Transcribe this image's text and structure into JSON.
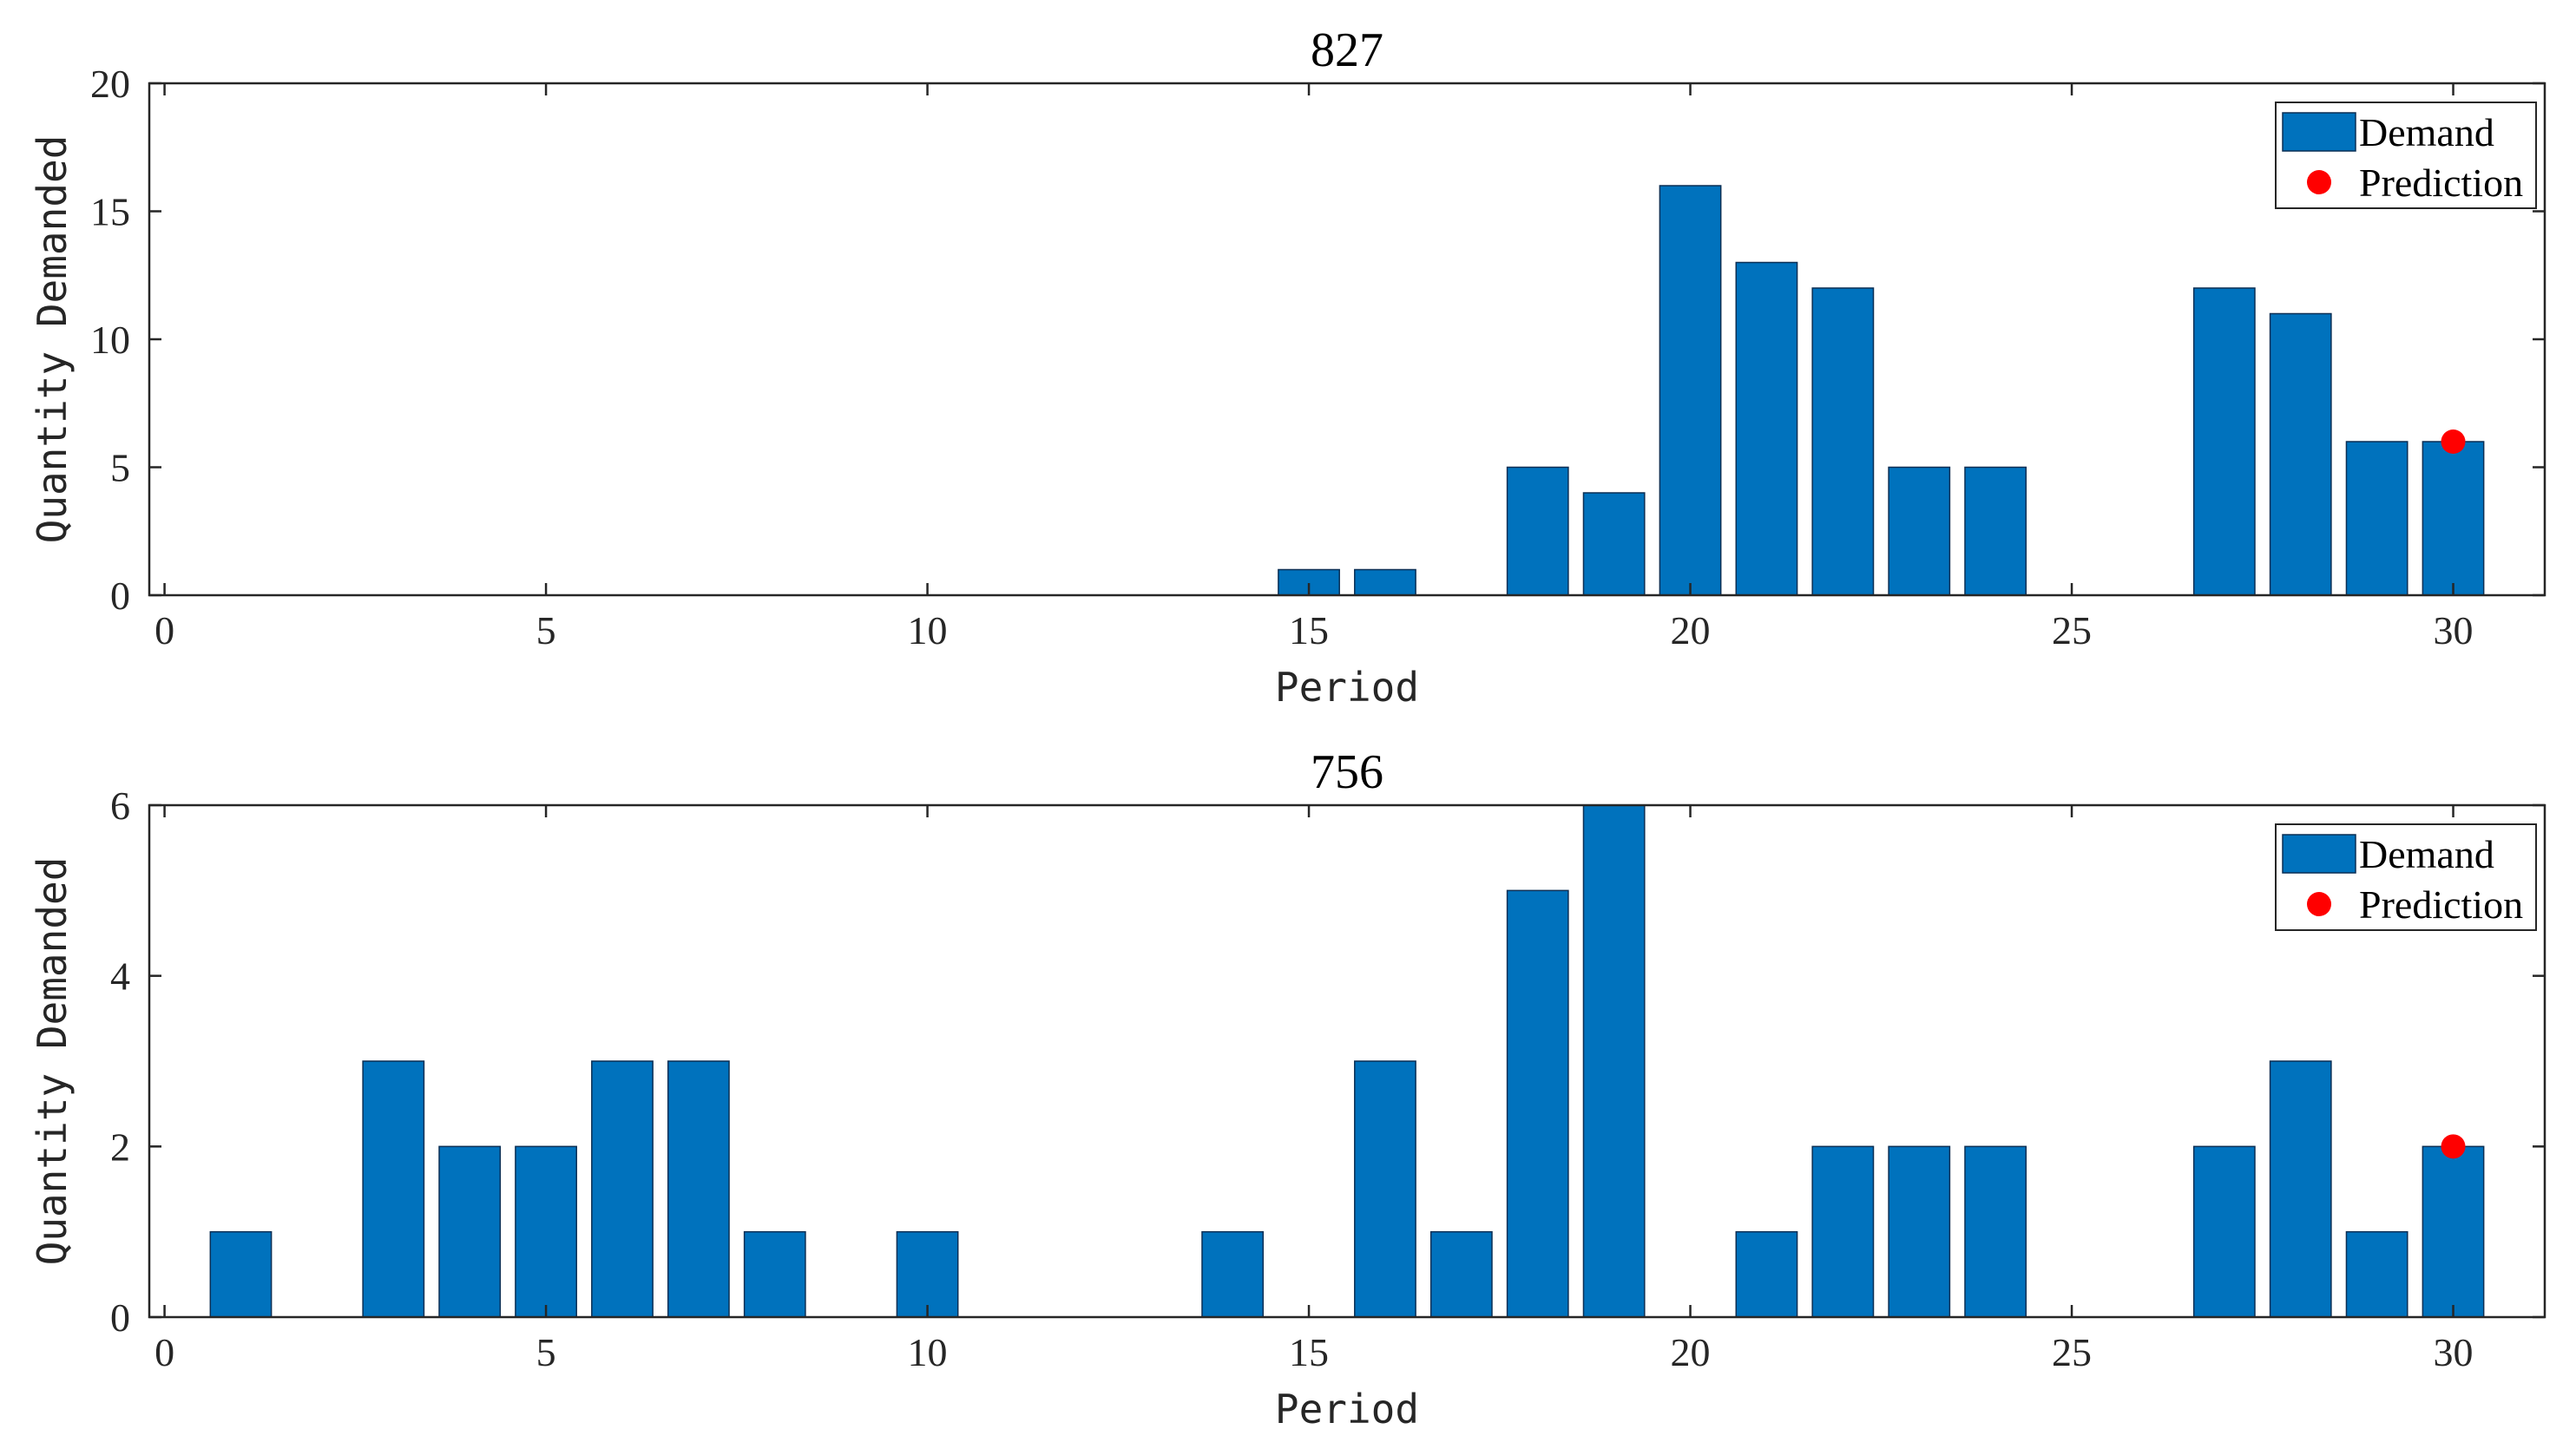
{
  "colors": {
    "bar_fill": "#0072BD",
    "bar_edge": "#0a2f55",
    "prediction": "#FF0000",
    "axis": "#262626"
  },
  "chart_data": [
    {
      "type": "bar",
      "title": "827",
      "xlabel": "Period",
      "ylabel": "Quantity Demanded",
      "xlim": [
        -0.2,
        31.2
      ],
      "ylim": [
        0,
        20
      ],
      "xticks": [
        0,
        5,
        10,
        15,
        20,
        25,
        30
      ],
      "yticks": [
        0,
        5,
        10,
        15,
        20
      ],
      "x": [
        1,
        2,
        3,
        4,
        5,
        6,
        7,
        8,
        9,
        10,
        11,
        12,
        13,
        14,
        15,
        16,
        17,
        18,
        19,
        20,
        21,
        22,
        23,
        24,
        25,
        26,
        27,
        28,
        29,
        30
      ],
      "series": [
        {
          "name": "Demand",
          "values": [
            0,
            0,
            0,
            0,
            0,
            0,
            0,
            0,
            0,
            0,
            0,
            0,
            0,
            0,
            1,
            1,
            0,
            5,
            4,
            16,
            13,
            12,
            5,
            5,
            0,
            0,
            12,
            11,
            6,
            6
          ]
        }
      ],
      "prediction": {
        "name": "Prediction",
        "x": 30,
        "y": 6
      },
      "legend": {
        "position": "top-right",
        "entries": [
          "Demand",
          "Prediction"
        ]
      }
    },
    {
      "type": "bar",
      "title": "756",
      "xlabel": "Period",
      "ylabel": "Quantity Demanded",
      "xlim": [
        -0.2,
        31.2
      ],
      "ylim": [
        0,
        6
      ],
      "xticks": [
        0,
        5,
        10,
        15,
        20,
        25,
        30
      ],
      "yticks": [
        0,
        2,
        4,
        6
      ],
      "x": [
        1,
        2,
        3,
        4,
        5,
        6,
        7,
        8,
        9,
        10,
        11,
        12,
        13,
        14,
        15,
        16,
        17,
        18,
        19,
        20,
        21,
        22,
        23,
        24,
        25,
        26,
        27,
        28,
        29,
        30
      ],
      "series": [
        {
          "name": "Demand",
          "values": [
            1,
            0,
            3,
            2,
            2,
            3,
            3,
            1,
            0,
            1,
            0,
            0,
            0,
            1,
            0,
            3,
            1,
            5,
            6,
            0,
            1,
            2,
            2,
            2,
            0,
            0,
            2,
            3,
            1,
            2
          ]
        }
      ],
      "prediction": {
        "name": "Prediction",
        "x": 30,
        "y": 2
      },
      "legend": {
        "position": "top-right",
        "entries": [
          "Demand",
          "Prediction"
        ]
      }
    }
  ]
}
